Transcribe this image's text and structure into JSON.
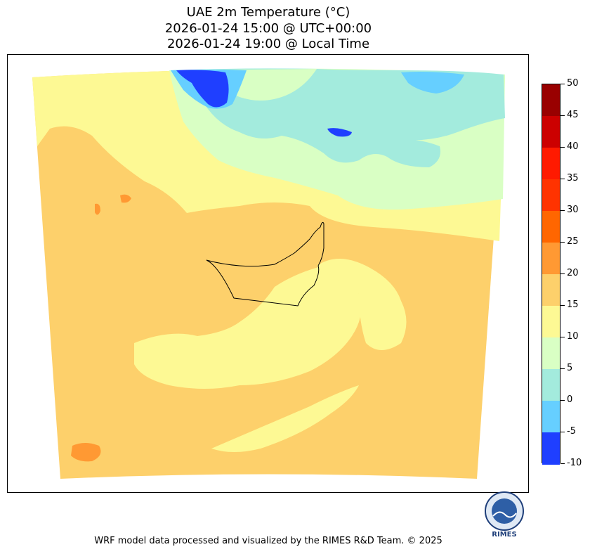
{
  "title": {
    "line1": "UAE 2m Temperature (°C)",
    "line2": "2026-01-24 15:00 @ UTC+00:00",
    "line3": "2026-01-24 19:00 @ Local Time"
  },
  "colorbar": {
    "levels": [
      {
        "label": "50",
        "color": "#990000"
      },
      {
        "label": "45",
        "color": "#cc0000"
      },
      {
        "label": "40",
        "color": "#ff1a00"
      },
      {
        "label": "35",
        "color": "#ff3300"
      },
      {
        "label": "30",
        "color": "#ff6600"
      },
      {
        "label": "25",
        "color": "#ff9933"
      },
      {
        "label": "20",
        "color": "#fdd06b"
      },
      {
        "label": "15",
        "color": "#fdf994"
      },
      {
        "label": "10",
        "color": "#d9ffc4"
      },
      {
        "label": "5",
        "color": "#a3ebdd"
      },
      {
        "label": "0",
        "color": "#66cfff"
      },
      {
        "label": "-5",
        "color": "#1f3fff"
      },
      {
        "label": "-10",
        "color": "#0000b3"
      }
    ]
  },
  "map": {
    "region": "UAE"
  },
  "logo": {
    "text": "RIMES"
  },
  "footer": "WRF model data processed and visualized by the RIMES R&D Team. © 2025"
}
